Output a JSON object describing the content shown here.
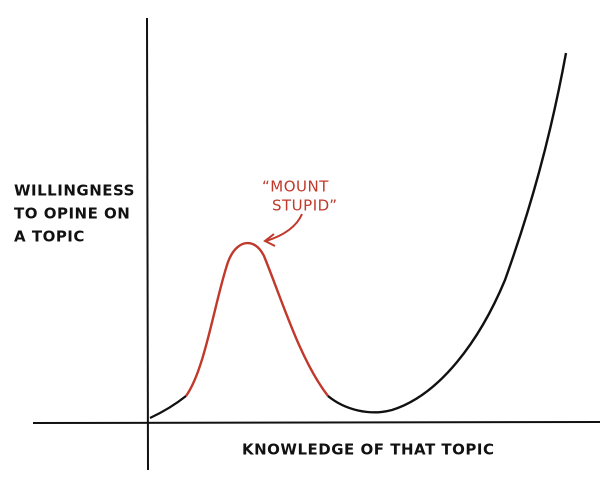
{
  "y_axis_label": {
    "lines": [
      "WILLINGNESS",
      "TO OPINE ON",
      "A TOPIC"
    ]
  },
  "x_axis_label": "KNOWLEDGE OF THAT TOPIC",
  "annotation": {
    "lines": [
      "“MOUNT",
      "STUPID”"
    ]
  }
}
